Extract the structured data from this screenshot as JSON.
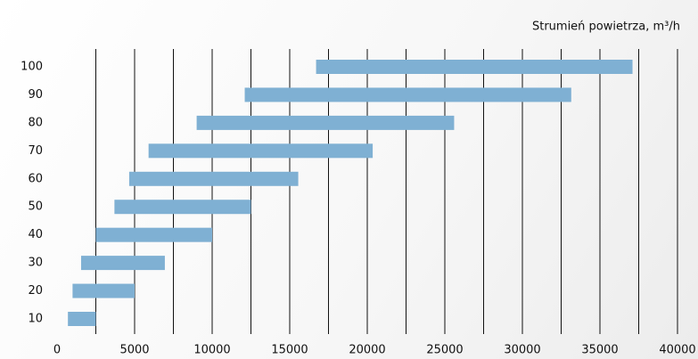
{
  "chart_data": {
    "type": "range-bar",
    "orientation": "horizontal",
    "x_label": "Strumień powietrza, m³/h",
    "categories": [
      "10",
      "20",
      "30",
      "40",
      "50",
      "60",
      "70",
      "80",
      "90",
      "100"
    ],
    "values": [
      [
        700,
        2500
      ],
      [
        1000,
        5000
      ],
      [
        1550,
        6950
      ],
      [
        2500,
        10000
      ],
      [
        3700,
        12500
      ],
      [
        4650,
        15550
      ],
      [
        5900,
        20350
      ],
      [
        9000,
        25600
      ],
      [
        12100,
        33150
      ],
      [
        16700,
        37100
      ]
    ],
    "color": "#7fb0d3",
    "xlim": [
      0,
      40000
    ],
    "xticks": [
      0,
      5000,
      10000,
      15000,
      20000,
      25000,
      30000,
      35000,
      40000
    ],
    "xgrid": [
      2500,
      5000,
      7500,
      10000,
      12500,
      15000,
      17500,
      20000,
      22500,
      25000,
      27500,
      30000,
      32500,
      35000,
      37500,
      40000
    ],
    "grid_color": "#111111"
  }
}
